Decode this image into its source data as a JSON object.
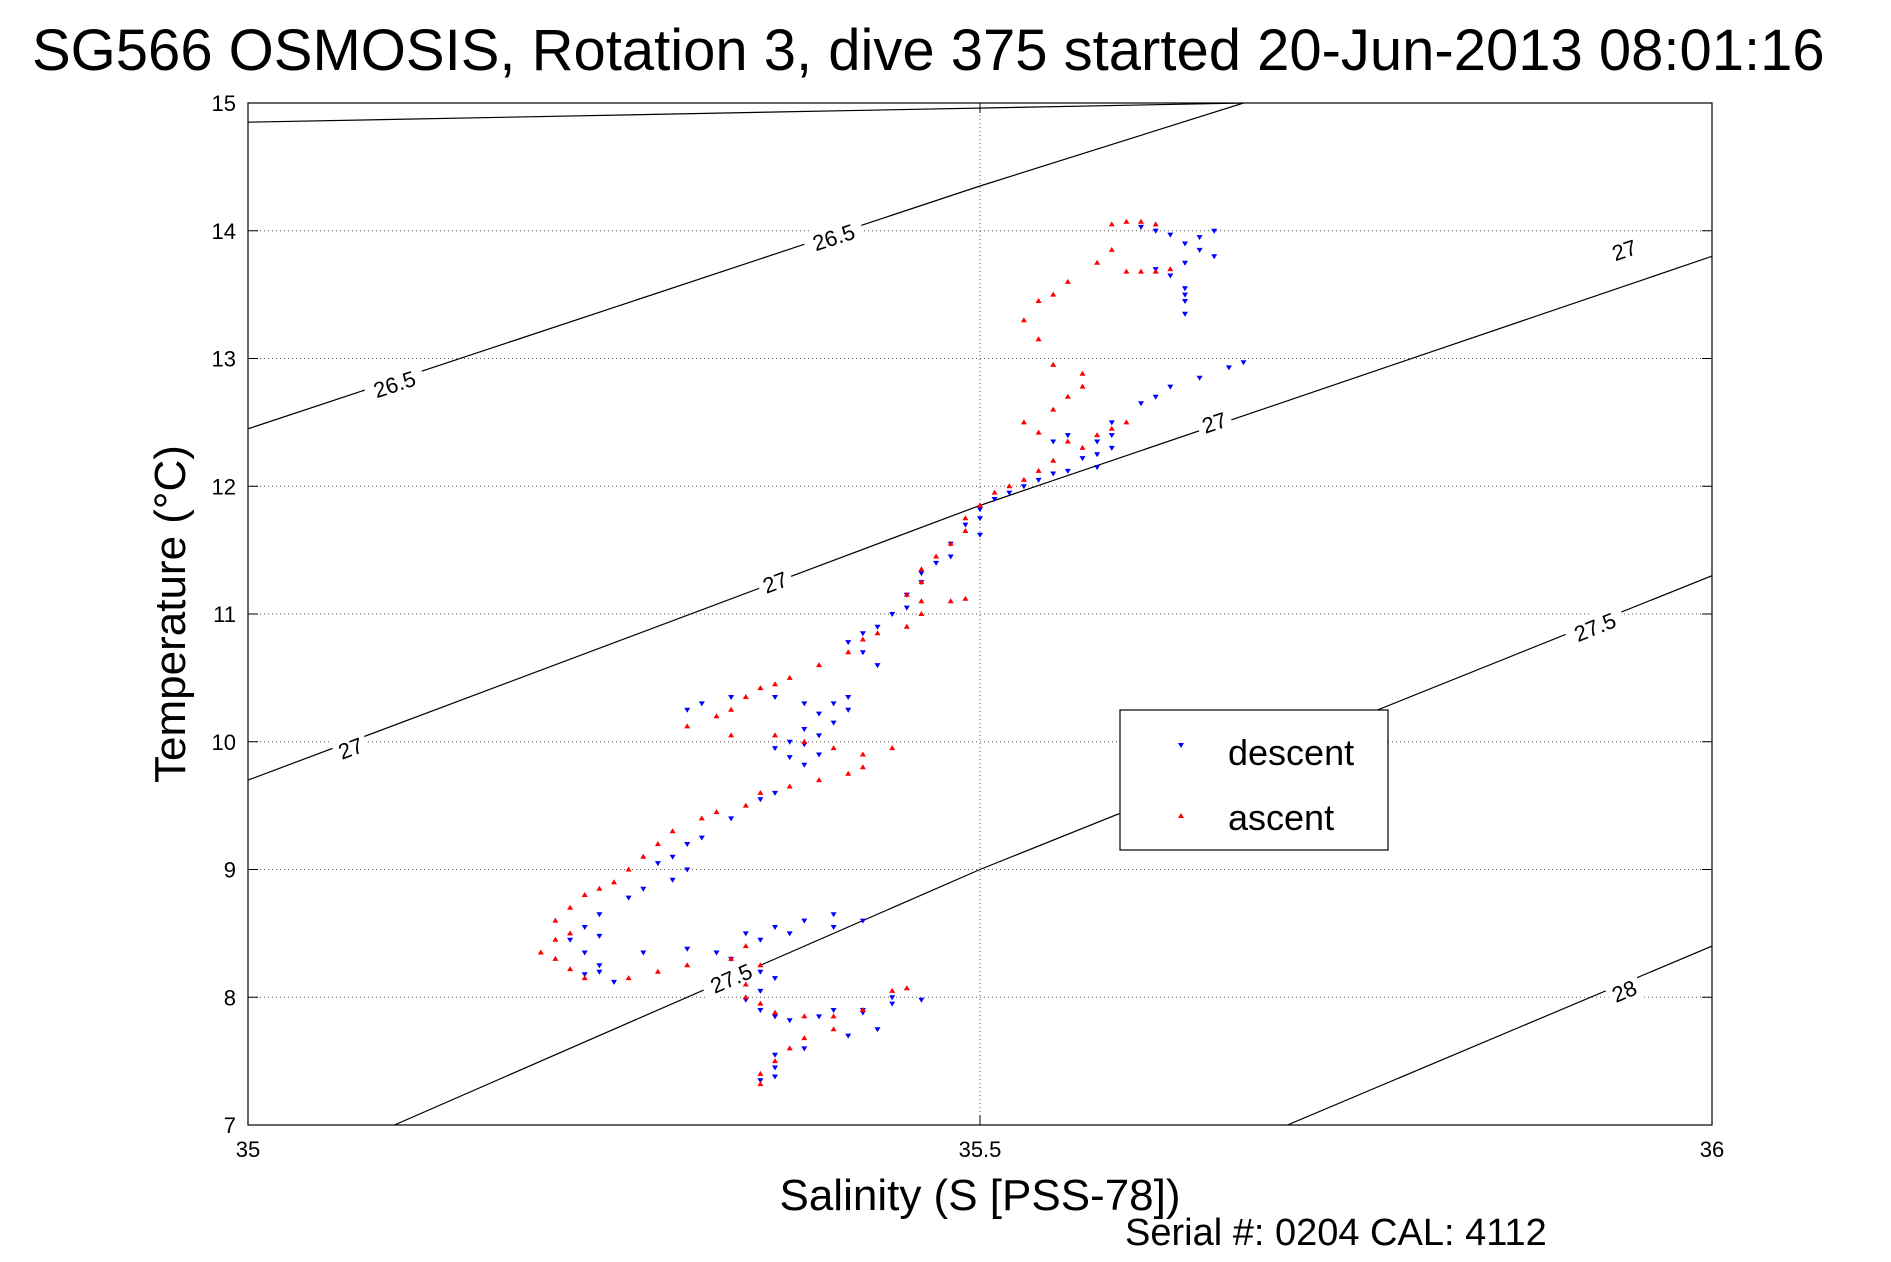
{
  "figure": {
    "title": "SG566 OSMOSIS, Rotation 3, dive 375 started 20-Jun-2013 08:01:16",
    "footer": "Serial #: 0204  CAL: 4112"
  },
  "chart_data": {
    "type": "scatter",
    "title": "SG566 OSMOSIS, Rotation 3, dive 375 started 20-Jun-2013 08:01:16",
    "xlabel": "Salinity (S [PSS-78])",
    "ylabel": "Temperature (°C)",
    "xlim": [
      35,
      36
    ],
    "ylim": [
      7,
      15
    ],
    "xticks": [
      35,
      35.5,
      36
    ],
    "xtick_labels": [
      "35",
      "35.5",
      "36"
    ],
    "yticks": [
      7,
      8,
      9,
      10,
      11,
      12,
      13,
      14,
      15
    ],
    "ytick_labels": [
      "7",
      "8",
      "9",
      "10",
      "11",
      "12",
      "13",
      "14",
      "15"
    ],
    "grid": true,
    "legend_position": "center-right",
    "colors": {
      "descent": "#0000ff",
      "ascent": "#ff0000",
      "contour": "#000000"
    },
    "contours": [
      {
        "level": "26.5",
        "points": [
          [
            35.0,
            14.85
          ],
          [
            35.68,
            15.0
          ]
        ],
        "labels": []
      },
      {
        "level": "26.5",
        "points": [
          [
            35.0,
            12.45
          ],
          [
            35.5,
            14.35
          ],
          [
            35.68,
            15.0
          ]
        ],
        "labels": [
          [
            35.1,
            12.8
          ],
          [
            35.4,
            13.95
          ]
        ]
      },
      {
        "level": "27",
        "points": [
          [
            35.0,
            9.7
          ],
          [
            35.5,
            11.85
          ],
          [
            36.0,
            13.8
          ]
        ],
        "labels": [
          [
            35.07,
            9.95
          ],
          [
            35.36,
            11.25
          ],
          [
            35.66,
            12.5
          ],
          [
            35.94,
            13.85
          ]
        ]
      },
      {
        "level": "27.5",
        "points": [
          [
            35.1,
            7.0
          ],
          [
            35.5,
            9.0
          ],
          [
            36.0,
            11.3
          ]
        ],
        "labels": [
          [
            35.33,
            8.15
          ],
          [
            35.92,
            10.9
          ]
        ]
      },
      {
        "level": "28",
        "points": [
          [
            35.71,
            7.0
          ],
          [
            36.0,
            8.4
          ]
        ],
        "labels": [
          [
            35.94,
            8.05
          ]
        ]
      }
    ],
    "series": [
      {
        "name": "descent",
        "marker": "triangle-down",
        "points": [
          [
            35.61,
            14.03
          ],
          [
            35.62,
            14.0
          ],
          [
            35.63,
            13.97
          ],
          [
            35.64,
            13.9
          ],
          [
            35.65,
            13.85
          ],
          [
            35.64,
            13.75
          ],
          [
            35.63,
            13.65
          ],
          [
            35.64,
            13.55
          ],
          [
            35.64,
            13.45
          ],
          [
            35.64,
            13.35
          ],
          [
            35.66,
            14.0
          ],
          [
            35.65,
            13.95
          ],
          [
            35.66,
            13.8
          ],
          [
            35.62,
            13.7
          ],
          [
            35.64,
            13.5
          ],
          [
            35.68,
            12.97
          ],
          [
            35.67,
            12.93
          ],
          [
            35.65,
            12.85
          ],
          [
            35.63,
            12.78
          ],
          [
            35.62,
            12.7
          ],
          [
            35.61,
            12.65
          ],
          [
            35.59,
            12.5
          ],
          [
            35.59,
            12.4
          ],
          [
            35.58,
            12.35
          ],
          [
            35.59,
            12.3
          ],
          [
            35.58,
            12.25
          ],
          [
            35.56,
            12.4
          ],
          [
            35.55,
            12.35
          ],
          [
            35.57,
            12.22
          ],
          [
            35.58,
            12.15
          ],
          [
            35.56,
            12.12
          ],
          [
            35.55,
            12.1
          ],
          [
            35.54,
            12.05
          ],
          [
            35.53,
            12.0
          ],
          [
            35.52,
            11.95
          ],
          [
            35.51,
            11.9
          ],
          [
            35.5,
            11.82
          ],
          [
            35.5,
            11.75
          ],
          [
            35.49,
            11.7
          ],
          [
            35.5,
            11.62
          ],
          [
            35.48,
            11.55
          ],
          [
            35.48,
            11.45
          ],
          [
            35.47,
            11.4
          ],
          [
            35.46,
            11.32
          ],
          [
            35.46,
            11.25
          ],
          [
            35.45,
            11.15
          ],
          [
            35.45,
            11.05
          ],
          [
            35.44,
            11.0
          ],
          [
            35.43,
            10.9
          ],
          [
            35.42,
            10.85
          ],
          [
            35.41,
            10.78
          ],
          [
            35.42,
            10.7
          ],
          [
            35.43,
            10.6
          ],
          [
            35.41,
            10.35
          ],
          [
            35.4,
            10.3
          ],
          [
            35.39,
            10.22
          ],
          [
            35.4,
            10.15
          ],
          [
            35.38,
            10.1
          ],
          [
            35.39,
            10.05
          ],
          [
            35.38,
            9.98
          ],
          [
            35.39,
            9.9
          ],
          [
            35.41,
            10.25
          ],
          [
            35.38,
            10.3
          ],
          [
            35.36,
            10.35
          ],
          [
            35.33,
            10.35
          ],
          [
            35.31,
            10.3
          ],
          [
            35.3,
            10.25
          ],
          [
            35.37,
            10.0
          ],
          [
            35.36,
            9.95
          ],
          [
            35.37,
            9.88
          ],
          [
            35.38,
            9.82
          ],
          [
            35.36,
            9.6
          ],
          [
            35.35,
            9.55
          ],
          [
            35.33,
            9.4
          ],
          [
            35.31,
            9.25
          ],
          [
            35.3,
            9.2
          ],
          [
            35.29,
            9.1
          ],
          [
            35.28,
            9.05
          ],
          [
            35.3,
            9.0
          ],
          [
            35.29,
            8.92
          ],
          [
            35.27,
            8.85
          ],
          [
            35.26,
            8.78
          ],
          [
            35.24,
            8.65
          ],
          [
            35.23,
            8.55
          ],
          [
            35.24,
            8.48
          ],
          [
            35.22,
            8.45
          ],
          [
            35.23,
            8.35
          ],
          [
            35.24,
            8.25
          ],
          [
            35.23,
            8.18
          ],
          [
            35.25,
            8.12
          ],
          [
            35.24,
            8.2
          ],
          [
            35.27,
            8.35
          ],
          [
            35.3,
            8.38
          ],
          [
            35.32,
            8.35
          ],
          [
            35.34,
            8.5
          ],
          [
            35.36,
            8.55
          ],
          [
            35.38,
            8.6
          ],
          [
            35.4,
            8.65
          ],
          [
            35.42,
            8.6
          ],
          [
            35.4,
            8.55
          ],
          [
            35.37,
            8.5
          ],
          [
            35.35,
            8.45
          ],
          [
            35.33,
            8.3
          ],
          [
            35.35,
            8.2
          ],
          [
            35.36,
            8.15
          ],
          [
            35.35,
            8.05
          ],
          [
            35.34,
            7.98
          ],
          [
            35.35,
            7.9
          ],
          [
            35.36,
            7.85
          ],
          [
            35.37,
            7.82
          ],
          [
            35.39,
            7.85
          ],
          [
            35.4,
            7.9
          ],
          [
            35.42,
            7.88
          ],
          [
            35.44,
            7.95
          ],
          [
            35.46,
            7.98
          ],
          [
            35.43,
            7.75
          ],
          [
            35.41,
            7.7
          ],
          [
            35.38,
            7.6
          ],
          [
            35.36,
            7.55
          ],
          [
            35.36,
            7.45
          ],
          [
            35.36,
            7.38
          ],
          [
            35.35,
            7.35
          ],
          [
            35.42,
            7.9
          ],
          [
            35.44,
            8.0
          ]
        ]
      },
      {
        "name": "ascent",
        "marker": "triangle-up",
        "points": [
          [
            35.59,
            14.05
          ],
          [
            35.6,
            14.07
          ],
          [
            35.61,
            14.07
          ],
          [
            35.62,
            14.05
          ],
          [
            35.59,
            13.85
          ],
          [
            35.58,
            13.75
          ],
          [
            35.6,
            13.68
          ],
          [
            35.61,
            13.68
          ],
          [
            35.62,
            13.68
          ],
          [
            35.63,
            13.7
          ],
          [
            35.56,
            13.6
          ],
          [
            35.55,
            13.5
          ],
          [
            35.54,
            13.45
          ],
          [
            35.53,
            13.3
          ],
          [
            35.54,
            13.15
          ],
          [
            35.55,
            12.95
          ],
          [
            35.57,
            12.88
          ],
          [
            35.57,
            12.78
          ],
          [
            35.56,
            12.7
          ],
          [
            35.55,
            12.6
          ],
          [
            35.53,
            12.5
          ],
          [
            35.54,
            12.42
          ],
          [
            35.56,
            12.35
          ],
          [
            35.58,
            12.4
          ],
          [
            35.59,
            12.45
          ],
          [
            35.6,
            12.5
          ],
          [
            35.57,
            12.3
          ],
          [
            35.55,
            12.2
          ],
          [
            35.54,
            12.12
          ],
          [
            35.53,
            12.05
          ],
          [
            35.52,
            12.0
          ],
          [
            35.51,
            11.95
          ],
          [
            35.5,
            11.85
          ],
          [
            35.49,
            11.75
          ],
          [
            35.49,
            11.65
          ],
          [
            35.48,
            11.55
          ],
          [
            35.47,
            11.45
          ],
          [
            35.46,
            11.35
          ],
          [
            35.46,
            11.25
          ],
          [
            35.45,
            11.15
          ],
          [
            35.46,
            11.1
          ],
          [
            35.48,
            11.1
          ],
          [
            35.49,
            11.12
          ],
          [
            35.46,
            11.0
          ],
          [
            35.45,
            10.9
          ],
          [
            35.43,
            10.85
          ],
          [
            35.42,
            10.8
          ],
          [
            35.41,
            10.7
          ],
          [
            35.39,
            10.6
          ],
          [
            35.37,
            10.5
          ],
          [
            35.36,
            10.45
          ],
          [
            35.35,
            10.42
          ],
          [
            35.34,
            10.35
          ],
          [
            35.33,
            10.25
          ],
          [
            35.32,
            10.2
          ],
          [
            35.3,
            10.12
          ],
          [
            35.33,
            10.05
          ],
          [
            35.36,
            10.05
          ],
          [
            35.38,
            10.0
          ],
          [
            35.4,
            9.95
          ],
          [
            35.42,
            9.9
          ],
          [
            35.44,
            9.95
          ],
          [
            35.42,
            9.8
          ],
          [
            35.41,
            9.75
          ],
          [
            35.39,
            9.7
          ],
          [
            35.37,
            9.65
          ],
          [
            35.35,
            9.6
          ],
          [
            35.34,
            9.5
          ],
          [
            35.32,
            9.45
          ],
          [
            35.31,
            9.4
          ],
          [
            35.29,
            9.3
          ],
          [
            35.28,
            9.2
          ],
          [
            35.27,
            9.1
          ],
          [
            35.26,
            9.0
          ],
          [
            35.25,
            8.9
          ],
          [
            35.24,
            8.85
          ],
          [
            35.23,
            8.8
          ],
          [
            35.22,
            8.7
          ],
          [
            35.21,
            8.6
          ],
          [
            35.22,
            8.5
          ],
          [
            35.21,
            8.45
          ],
          [
            35.2,
            8.35
          ],
          [
            35.21,
            8.3
          ],
          [
            35.22,
            8.22
          ],
          [
            35.23,
            8.15
          ],
          [
            35.26,
            8.15
          ],
          [
            35.28,
            8.2
          ],
          [
            35.3,
            8.25
          ],
          [
            35.33,
            8.3
          ],
          [
            35.34,
            8.4
          ],
          [
            35.35,
            8.25
          ],
          [
            35.34,
            8.1
          ],
          [
            35.34,
            8.0
          ],
          [
            35.35,
            7.95
          ],
          [
            35.36,
            7.88
          ],
          [
            35.38,
            7.85
          ],
          [
            35.4,
            7.85
          ],
          [
            35.42,
            7.9
          ],
          [
            35.44,
            8.05
          ],
          [
            35.45,
            8.07
          ],
          [
            35.4,
            7.75
          ],
          [
            35.38,
            7.68
          ],
          [
            35.37,
            7.6
          ],
          [
            35.36,
            7.5
          ],
          [
            35.35,
            7.4
          ],
          [
            35.35,
            7.32
          ]
        ]
      }
    ]
  }
}
